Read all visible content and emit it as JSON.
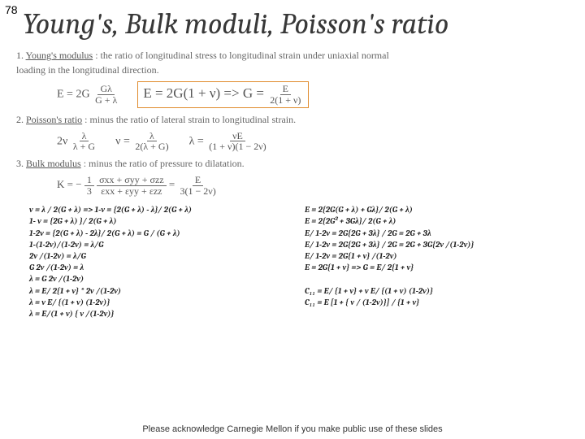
{
  "page_number": "78",
  "title": "Young's, Bulk moduli, Poisson's ratio",
  "defs": {
    "young": {
      "num": "1.",
      "label": "Young's modulus",
      "desc": ": the ratio of longitudinal stress to longitudinal strain under uniaxial normal",
      "desc2": "loading in the longitudinal direction.",
      "eq1_lhs": "E = 2G",
      "eq1_frac_num": "Gλ",
      "eq1_frac_den": "G + λ",
      "eq2": "E = 2G(1 + ν) => G =",
      "eq2_frac_num": "E",
      "eq2_frac_den": "2(1 + ν)"
    },
    "poisson": {
      "num": "2.",
      "label": "Poisson's ratio",
      "desc": ": minus the ratio of lateral strain to longitudinal strain.",
      "eq1_lhs": "2ν",
      "eq1_frac_num": "λ",
      "eq1_frac_den": "λ + G",
      "eq2_lhs": "ν =",
      "eq2_frac_num": "λ",
      "eq2_frac_den": "2(λ + G)",
      "eq3_lhs": "λ =",
      "eq3_frac_num": "νE",
      "eq3_frac_den": "(1 + ν)(1 − 2ν)"
    },
    "bulk": {
      "num": "3.",
      "label": "Bulk modulus",
      "desc": ": minus the ratio of pressure to dilatation.",
      "eq1_lhs": "K = −",
      "eq1_frac1_num": "1",
      "eq1_frac1_den": "3",
      "eq1_frac2_num": "σxx + σyy + σzz",
      "eq1_frac2_den": "εxx + εyy + εzz",
      "eq1_rhs": "=",
      "eq1_frac3_num": "E",
      "eq1_frac3_den": "3(1 − 2ν)"
    }
  },
  "left_col": [
    "ν =  λ / 2(G + λ)  => 1-ν = {2(G + λ) - λ}/ 2(G + λ)",
    "1- ν = {2G + λ) }/ 2(G + λ)",
    "1-2ν = {2(G + λ) - 2λ}/ 2(G + λ) = G / (G + λ)",
    "1-(1-2ν)/(1-2ν) = λ/G",
    "2ν /(1-2ν) = λ/G",
    "G 2ν /(1-2ν) = λ",
    "λ = G 2ν /(1-2ν)",
    "λ = E/ 2{1 + ν} * 2ν /(1-2ν)",
    "λ = ν E/ {(1 + ν) (1-2ν)}",
    "λ = E/(1 + ν) { ν /(1-2ν)}"
  ],
  "right_col": [
    "E = 2{2G(G + λ) + Gλ}/ 2(G + λ)",
    "E = 2{2G² + 3Gλ}/ 2(G + λ)",
    "E/ 1-2ν = 2G{2G + 3λ} / 2G = 2G + 3λ",
    "E/ 1-2ν = 2G{2G + 3λ} / 2G = 2G + 3G{2ν /(1-2ν)}",
    "E/ 1-2ν = 2G{1 + ν} /(1-2ν)",
    "E = 2G{1 + ν} => G = E/ 2{1 + ν}",
    "",
    "C₁₁ = E/ {1 + ν} + ν E/ {(1 + ν) (1-2ν)}",
    "C₁₁ = E  [1 + { ν / (1-2ν)}] / {1 + ν}"
  ],
  "footer": "Please acknowledge Carnegie Mellon if you make public use of these slides"
}
